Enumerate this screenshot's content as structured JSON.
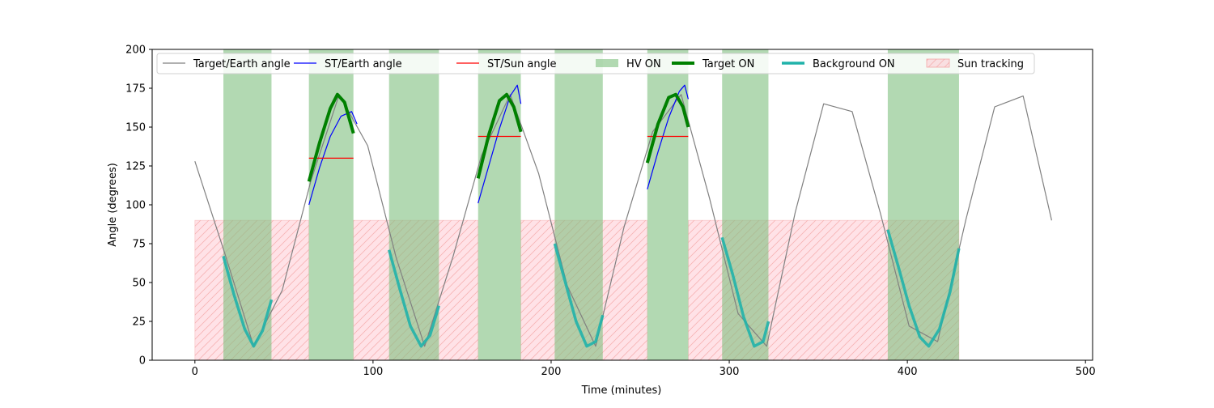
{
  "chart_data": {
    "type": "line",
    "title": "",
    "xlabel": "Time (minutes)",
    "ylabel": "Angle (degrees)",
    "xlim": [
      -24,
      504
    ],
    "ylim": [
      0,
      200
    ],
    "xticks": [
      0,
      100,
      200,
      300,
      400,
      500
    ],
    "yticks": [
      0,
      25,
      50,
      75,
      100,
      125,
      150,
      175,
      200
    ],
    "legend_position": "top",
    "colors": {
      "target_earth": "#808080",
      "st_earth": "#0000ff",
      "st_sun": "#ff0000",
      "hv_on": "#7fbf7f",
      "target_on": "#008000",
      "background_on": "#20b2aa",
      "sun_tracking_fill": "#ffc0cb",
      "sun_tracking_hatch": "#f4a6a6"
    },
    "legend": [
      {
        "key": "target_earth",
        "label": "Target/Earth angle"
      },
      {
        "key": "st_earth",
        "label": "ST/Earth angle"
      },
      {
        "key": "st_sun",
        "label": "ST/Sun angle"
      },
      {
        "key": "hv_on",
        "label": "HV ON"
      },
      {
        "key": "target_on",
        "label": "Target ON"
      },
      {
        "key": "background_on",
        "label": "Background ON"
      },
      {
        "key": "sun_tracking",
        "label": "Sun tracking"
      }
    ],
    "series": [
      {
        "name": "Target/Earth angle",
        "x": [
          0,
          17,
          33,
          49,
          65,
          81,
          97,
          113,
          129,
          145,
          161,
          177,
          193,
          209,
          225,
          241,
          257,
          273,
          289,
          305,
          321,
          337,
          353,
          369,
          385,
          401,
          417,
          433,
          449,
          465,
          481
        ],
        "y": [
          128,
          68,
          9,
          45,
          115,
          171,
          138,
          66,
          9,
          67,
          132,
          171,
          120,
          48,
          9,
          86,
          147,
          171,
          104,
          30,
          9,
          95,
          165,
          160,
          94,
          22,
          12,
          91,
          163,
          170,
          90
        ]
      },
      {
        "name": "ST/Earth angle",
        "segments": [
          {
            "x": [
              64,
              70,
              76,
              82,
              88,
              91
            ],
            "y": [
              100,
              124,
              144,
              157,
              160,
              152
            ]
          },
          {
            "x": [
              159,
              165,
              171,
              177,
              181,
              183
            ],
            "y": [
              101,
              125,
              149,
              170,
              177,
              165
            ]
          },
          {
            "x": [
              254,
              260,
              266,
              272,
              275,
              277
            ],
            "y": [
              110,
              134,
              156,
              173,
              177,
              168
            ]
          }
        ]
      },
      {
        "name": "ST/Sun angle",
        "segments": [
          {
            "x": [
              64,
              89
            ],
            "y": [
              130,
              130
            ]
          },
          {
            "x": [
              159,
              183
            ],
            "y": [
              144,
              144
            ]
          },
          {
            "x": [
              254,
              277
            ],
            "y": [
              144,
              144
            ]
          }
        ]
      },
      {
        "name": "Target ON",
        "segments": [
          {
            "x": [
              64,
              70,
              76,
              80,
              84,
              89
            ],
            "y": [
              115,
              140,
              162,
              171,
              166,
              146
            ]
          },
          {
            "x": [
              159,
              165,
              171,
              175,
              179,
              183
            ],
            "y": [
              117,
              145,
              167,
              171,
              163,
              147
            ]
          },
          {
            "x": [
              254,
              260,
              266,
              270,
              274,
              277
            ],
            "y": [
              127,
              152,
              169,
              171,
              163,
              150
            ]
          }
        ]
      },
      {
        "name": "Background ON",
        "segments": [
          {
            "x": [
              16,
              22,
              28,
              33,
              38,
              43
            ],
            "y": [
              67,
              42,
              20,
              9,
              19,
              39
            ]
          },
          {
            "x": [
              109,
              115,
              121,
              127,
              132,
              137
            ],
            "y": [
              71,
              46,
              22,
              9,
              16,
              35
            ]
          },
          {
            "x": [
              202,
              208,
              214,
              220,
              225,
              229
            ],
            "y": [
              75,
              50,
              25,
              9,
              12,
              29
            ]
          },
          {
            "x": [
              296,
              302,
              308,
              314,
              319,
              322
            ],
            "y": [
              79,
              55,
              28,
              9,
              12,
              25
            ]
          },
          {
            "x": [
              389,
              395,
              401,
              407,
              412,
              418,
              424,
              429
            ],
            "y": [
              84,
              60,
              35,
              15,
              9,
              20,
              44,
              72
            ]
          }
        ]
      }
    ],
    "hv_on_intervals": [
      [
        16,
        43
      ],
      [
        64,
        89
      ],
      [
        109,
        137
      ],
      [
        159,
        183
      ],
      [
        202,
        229
      ],
      [
        254,
        277
      ],
      [
        296,
        322
      ],
      [
        389,
        429
      ]
    ],
    "sun_tracking_intervals": [
      [
        0,
        64
      ],
      [
        89,
        159
      ],
      [
        183,
        254
      ],
      [
        277,
        429
      ]
    ],
    "sun_tracking_level": 90
  }
}
